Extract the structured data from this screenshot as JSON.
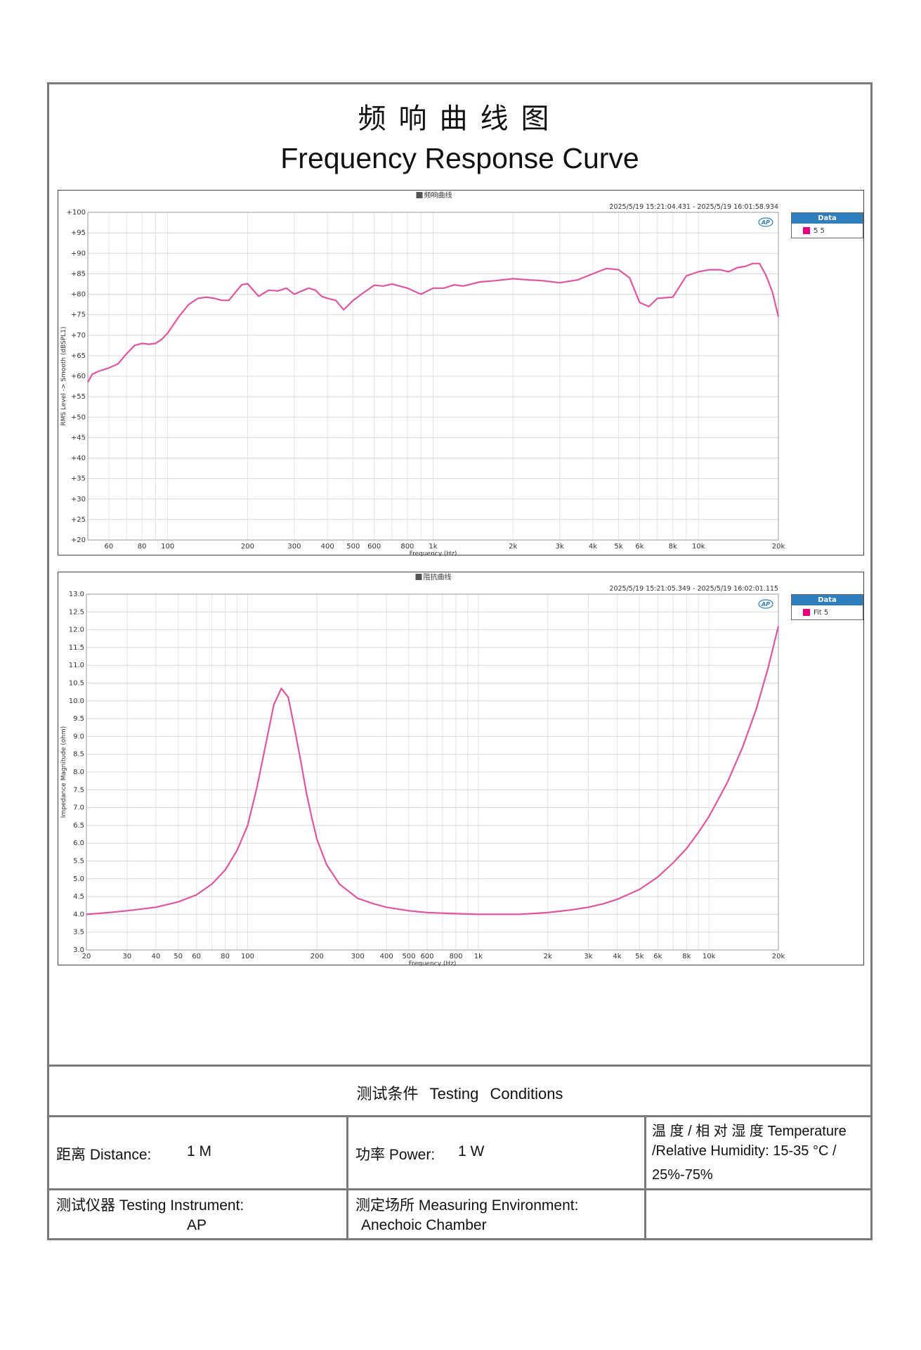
{
  "header": {
    "title_cn": "频响曲线图",
    "title_en": "Frequency Response Curve"
  },
  "fr_chart": {
    "panel_title": "频响曲线",
    "timestamp": "2025/5/19 15:21:04.431 - 2025/5/19 16:01:58.934",
    "legend_title": "Data",
    "legend_label": "5 5",
    "badge": "AP"
  },
  "imp_chart": {
    "panel_title": "阻抗曲线",
    "timestamp": "2025/5/19 15:21:05.349 - 2025/5/19 16:02:01.115",
    "legend_title": "Data",
    "legend_label": "Fit 5",
    "badge": "AP"
  },
  "chart_data": [
    {
      "type": "line",
      "title": "频响曲线",
      "xlabel": "Frequency (Hz)",
      "ylabel": "RMS Level -> Smooth (dBSPL1)",
      "x_scale": "log",
      "xlim": [
        50,
        20000
      ],
      "ylim": [
        20,
        100
      ],
      "grid": true,
      "legend_position": "right",
      "color": "#e0559f",
      "x_tick_values": [
        60,
        80,
        100,
        200,
        300,
        400,
        500,
        600,
        800,
        1000,
        2000,
        3000,
        4000,
        5000,
        6000,
        8000,
        10000,
        20000
      ],
      "x_tick_labels": [
        "60",
        "80",
        "100",
        "200",
        "300",
        "400",
        "500",
        "600",
        "800",
        "1k",
        "2k",
        "3k",
        "4k",
        "5k",
        "6k",
        "8k",
        "10k",
        "20k"
      ],
      "y_tick_values": [
        20,
        25,
        30,
        35,
        40,
        45,
        50,
        55,
        60,
        65,
        70,
        75,
        80,
        85,
        90,
        95,
        100
      ],
      "y_tick_labels": [
        "+20",
        "+25",
        "+30",
        "+35",
        "+40",
        "+45",
        "+50",
        "+55",
        "+60",
        "+65",
        "+70",
        "+75",
        "+80",
        "+85",
        "+90",
        "+95",
        "+100"
      ],
      "series": [
        {
          "name": "5 5",
          "x": [
            50,
            52,
            55,
            60,
            65,
            70,
            75,
            80,
            85,
            90,
            95,
            100,
            110,
            120,
            130,
            140,
            150,
            160,
            170,
            180,
            190,
            200,
            220,
            240,
            260,
            280,
            300,
            320,
            340,
            360,
            380,
            400,
            430,
            460,
            500,
            550,
            600,
            650,
            700,
            800,
            900,
            1000,
            1100,
            1200,
            1300,
            1500,
            1700,
            2000,
            2300,
            2600,
            3000,
            3500,
            4000,
            4500,
            5000,
            5500,
            6000,
            6500,
            7000,
            8000,
            9000,
            10000,
            11000,
            12000,
            13000,
            14000,
            15000,
            16000,
            17000,
            18000,
            19000,
            20000
          ],
          "y": [
            58.5,
            60.5,
            61.2,
            62.0,
            63.0,
            65.5,
            67.5,
            68.0,
            67.8,
            68.0,
            69.0,
            70.5,
            74.5,
            77.5,
            79.0,
            79.3,
            79.0,
            78.5,
            78.5,
            80.5,
            82.3,
            82.6,
            79.5,
            81.0,
            80.8,
            81.5,
            80.0,
            80.8,
            81.5,
            81.0,
            79.5,
            79.0,
            78.5,
            76.2,
            78.5,
            80.5,
            82.2,
            82.0,
            82.5,
            81.5,
            80.0,
            81.5,
            81.5,
            82.3,
            82.0,
            83.0,
            83.3,
            83.8,
            83.5,
            83.3,
            82.8,
            83.5,
            85.0,
            86.3,
            86.0,
            84.0,
            78.0,
            77.0,
            79.0,
            79.3,
            84.5,
            85.5,
            86.0,
            86.0,
            85.5,
            86.5,
            86.8,
            87.5,
            87.5,
            84.5,
            80.5,
            74.5
          ]
        }
      ]
    },
    {
      "type": "line",
      "title": "阻抗曲线",
      "xlabel": "Frequency (Hz)",
      "ylabel": "Impedance Magnitude (ohm)",
      "x_scale": "log",
      "xlim": [
        20,
        20000
      ],
      "ylim": [
        3.0,
        13.0
      ],
      "grid": true,
      "legend_position": "right",
      "color": "#e0559f",
      "x_tick_values": [
        20,
        30,
        40,
        50,
        60,
        80,
        100,
        200,
        300,
        400,
        500,
        600,
        800,
        1000,
        2000,
        3000,
        4000,
        5000,
        6000,
        8000,
        10000,
        20000
      ],
      "x_tick_labels": [
        "20",
        "30",
        "40",
        "50",
        "60",
        "80",
        "100",
        "200",
        "300",
        "400",
        "500",
        "600",
        "800",
        "1k",
        "2k",
        "3k",
        "4k",
        "5k",
        "6k",
        "8k",
        "10k",
        "20k"
      ],
      "y_tick_values": [
        3.0,
        3.5,
        4.0,
        4.5,
        5.0,
        5.5,
        6.0,
        6.5,
        7.0,
        7.5,
        8.0,
        8.5,
        9.0,
        9.5,
        10.0,
        10.5,
        11.0,
        11.5,
        12.0,
        12.5,
        13.0
      ],
      "y_tick_labels": [
        "3.0",
        "3.5",
        "4.0",
        "4.5",
        "5.0",
        "5.5",
        "6.0",
        "6.5",
        "7.0",
        "7.5",
        "8.0",
        "8.5",
        "9.0",
        "9.5",
        "10.0",
        "10.5",
        "11.0",
        "11.5",
        "12.0",
        "12.5",
        "13.0"
      ],
      "series": [
        {
          "name": "Fit 5",
          "x": [
            20,
            25,
            30,
            40,
            50,
            60,
            70,
            80,
            90,
            100,
            110,
            120,
            130,
            140,
            150,
            160,
            170,
            180,
            190,
            200,
            220,
            250,
            300,
            350,
            400,
            500,
            600,
            800,
            1000,
            1200,
            1500,
            2000,
            2500,
            3000,
            3500,
            4000,
            5000,
            6000,
            7000,
            8000,
            9000,
            10000,
            12000,
            14000,
            16000,
            18000,
            20000
          ],
          "y": [
            4.0,
            4.05,
            4.1,
            4.2,
            4.35,
            4.55,
            4.85,
            5.25,
            5.8,
            6.5,
            7.6,
            8.8,
            9.9,
            10.35,
            10.1,
            9.2,
            8.3,
            7.4,
            6.7,
            6.1,
            5.4,
            4.85,
            4.45,
            4.3,
            4.2,
            4.1,
            4.05,
            4.02,
            4.0,
            4.0,
            4.0,
            4.05,
            4.12,
            4.2,
            4.3,
            4.42,
            4.7,
            5.05,
            5.45,
            5.85,
            6.3,
            6.75,
            7.7,
            8.7,
            9.75,
            10.9,
            12.1
          ]
        }
      ]
    }
  ],
  "conditions": {
    "section_title": "测试条件 Testing Conditions",
    "distance": "距离 Distance:",
    "distance_value": "1 M",
    "power": "功率 Power:",
    "power_value": "1 W",
    "temp_line1": "温 度 / 相 对 湿 度  Temperature",
    "temp_line2": "/Relative Humidity: 15-35 °C /",
    "temp_line3": "25%-75%",
    "instrument": "测试仪器 Testing Instrument:",
    "instrument_value": "AP",
    "environment": "测定场所 Measuring Environment:",
    "environment_value": "Anechoic Chamber"
  }
}
